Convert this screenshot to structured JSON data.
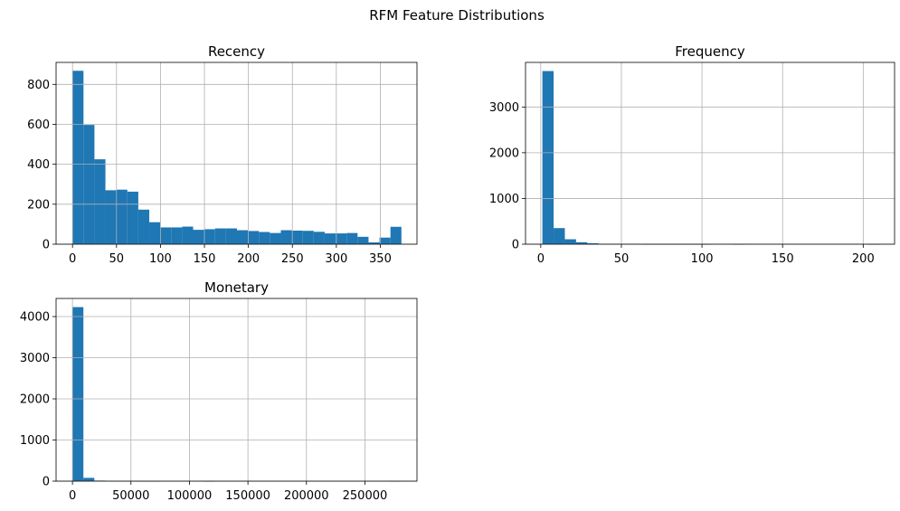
{
  "figure": {
    "suptitle": "RFM Feature Distributions"
  },
  "chart_data": [
    {
      "type": "bar",
      "title": "Recency",
      "xlabel": "",
      "ylabel": "",
      "xlim": [
        -18.7,
        391.7
      ],
      "ylim": [
        0,
        910
      ],
      "grid": true,
      "xticks": [
        0,
        50,
        100,
        150,
        200,
        250,
        300,
        350
      ],
      "yticks": [
        0,
        200,
        400,
        600,
        800
      ],
      "bin_edges": [
        0,
        12.47,
        24.93,
        37.4,
        49.87,
        62.33,
        74.8,
        87.27,
        99.73,
        112.2,
        124.67,
        137.13,
        149.6,
        162.07,
        174.53,
        187,
        199.47,
        211.93,
        224.4,
        236.87,
        249.33,
        261.8,
        274.27,
        286.73,
        299.2,
        311.67,
        324.13,
        336.6,
        349.07,
        361.53,
        374
      ],
      "values": [
        868,
        597,
        425,
        270,
        273,
        263,
        173,
        110,
        84,
        84,
        88,
        72,
        75,
        79,
        79,
        70,
        66,
        61,
        56,
        70,
        68,
        67,
        62,
        54,
        54,
        56,
        37,
        9,
        33,
        87
      ],
      "color": "#1f77b4"
    },
    {
      "type": "bar",
      "title": "Frequency",
      "xlabel": "",
      "ylabel": "",
      "xlim": [
        -9.45,
        219.45
      ],
      "ylim": [
        0,
        3975
      ],
      "grid": true,
      "xticks": [
        0,
        50,
        100,
        150,
        200
      ],
      "yticks": [
        0,
        1000,
        2000,
        3000
      ],
      "bin_edges": [
        1,
        7.97,
        14.93,
        21.9,
        28.87,
        35.83,
        42.8,
        49.77,
        56.73,
        63.7,
        70.67,
        77.63,
        84.6,
        91.57,
        98.53,
        105.5,
        112.47,
        119.43,
        126.4,
        133.37,
        140.33,
        147.3,
        154.27,
        161.23,
        168.2,
        175.17,
        182.13,
        189.1,
        196.07,
        203.03,
        210
      ],
      "values": [
        3786,
        352,
        108,
        43,
        20,
        8,
        6,
        3,
        2,
        1,
        1,
        1,
        1,
        1,
        1,
        0,
        0,
        1,
        0,
        0,
        0,
        0,
        0,
        0,
        0,
        0,
        0,
        0,
        0,
        1
      ],
      "color": "#1f77b4"
    },
    {
      "type": "bar",
      "title": "Monetary",
      "xlabel": "",
      "ylabel": "",
      "xlim": [
        -14000,
        294500
      ],
      "ylim": [
        0,
        4440
      ],
      "grid": true,
      "xticks": [
        0,
        50000,
        100000,
        150000,
        200000,
        250000
      ],
      "yticks": [
        0,
        1000,
        2000,
        3000,
        4000
      ],
      "bin_edges": [
        0,
        9345,
        18690,
        28035,
        37380,
        46725,
        56070,
        65415,
        74760,
        84105,
        93450,
        102795,
        112140,
        121485,
        130830,
        140175,
        149520,
        158865,
        168210,
        177555,
        186900,
        196245,
        205590,
        214935,
        224280,
        233625,
        242970,
        252315,
        261660,
        271005,
        280350
      ],
      "values": [
        4230,
        80,
        14,
        6,
        3,
        2,
        1,
        1,
        0,
        0,
        0,
        0,
        1,
        0,
        0,
        0,
        0,
        0,
        0,
        0,
        0,
        0,
        0,
        0,
        0,
        0,
        0,
        0,
        0,
        1
      ],
      "color": "#1f77b4"
    }
  ]
}
